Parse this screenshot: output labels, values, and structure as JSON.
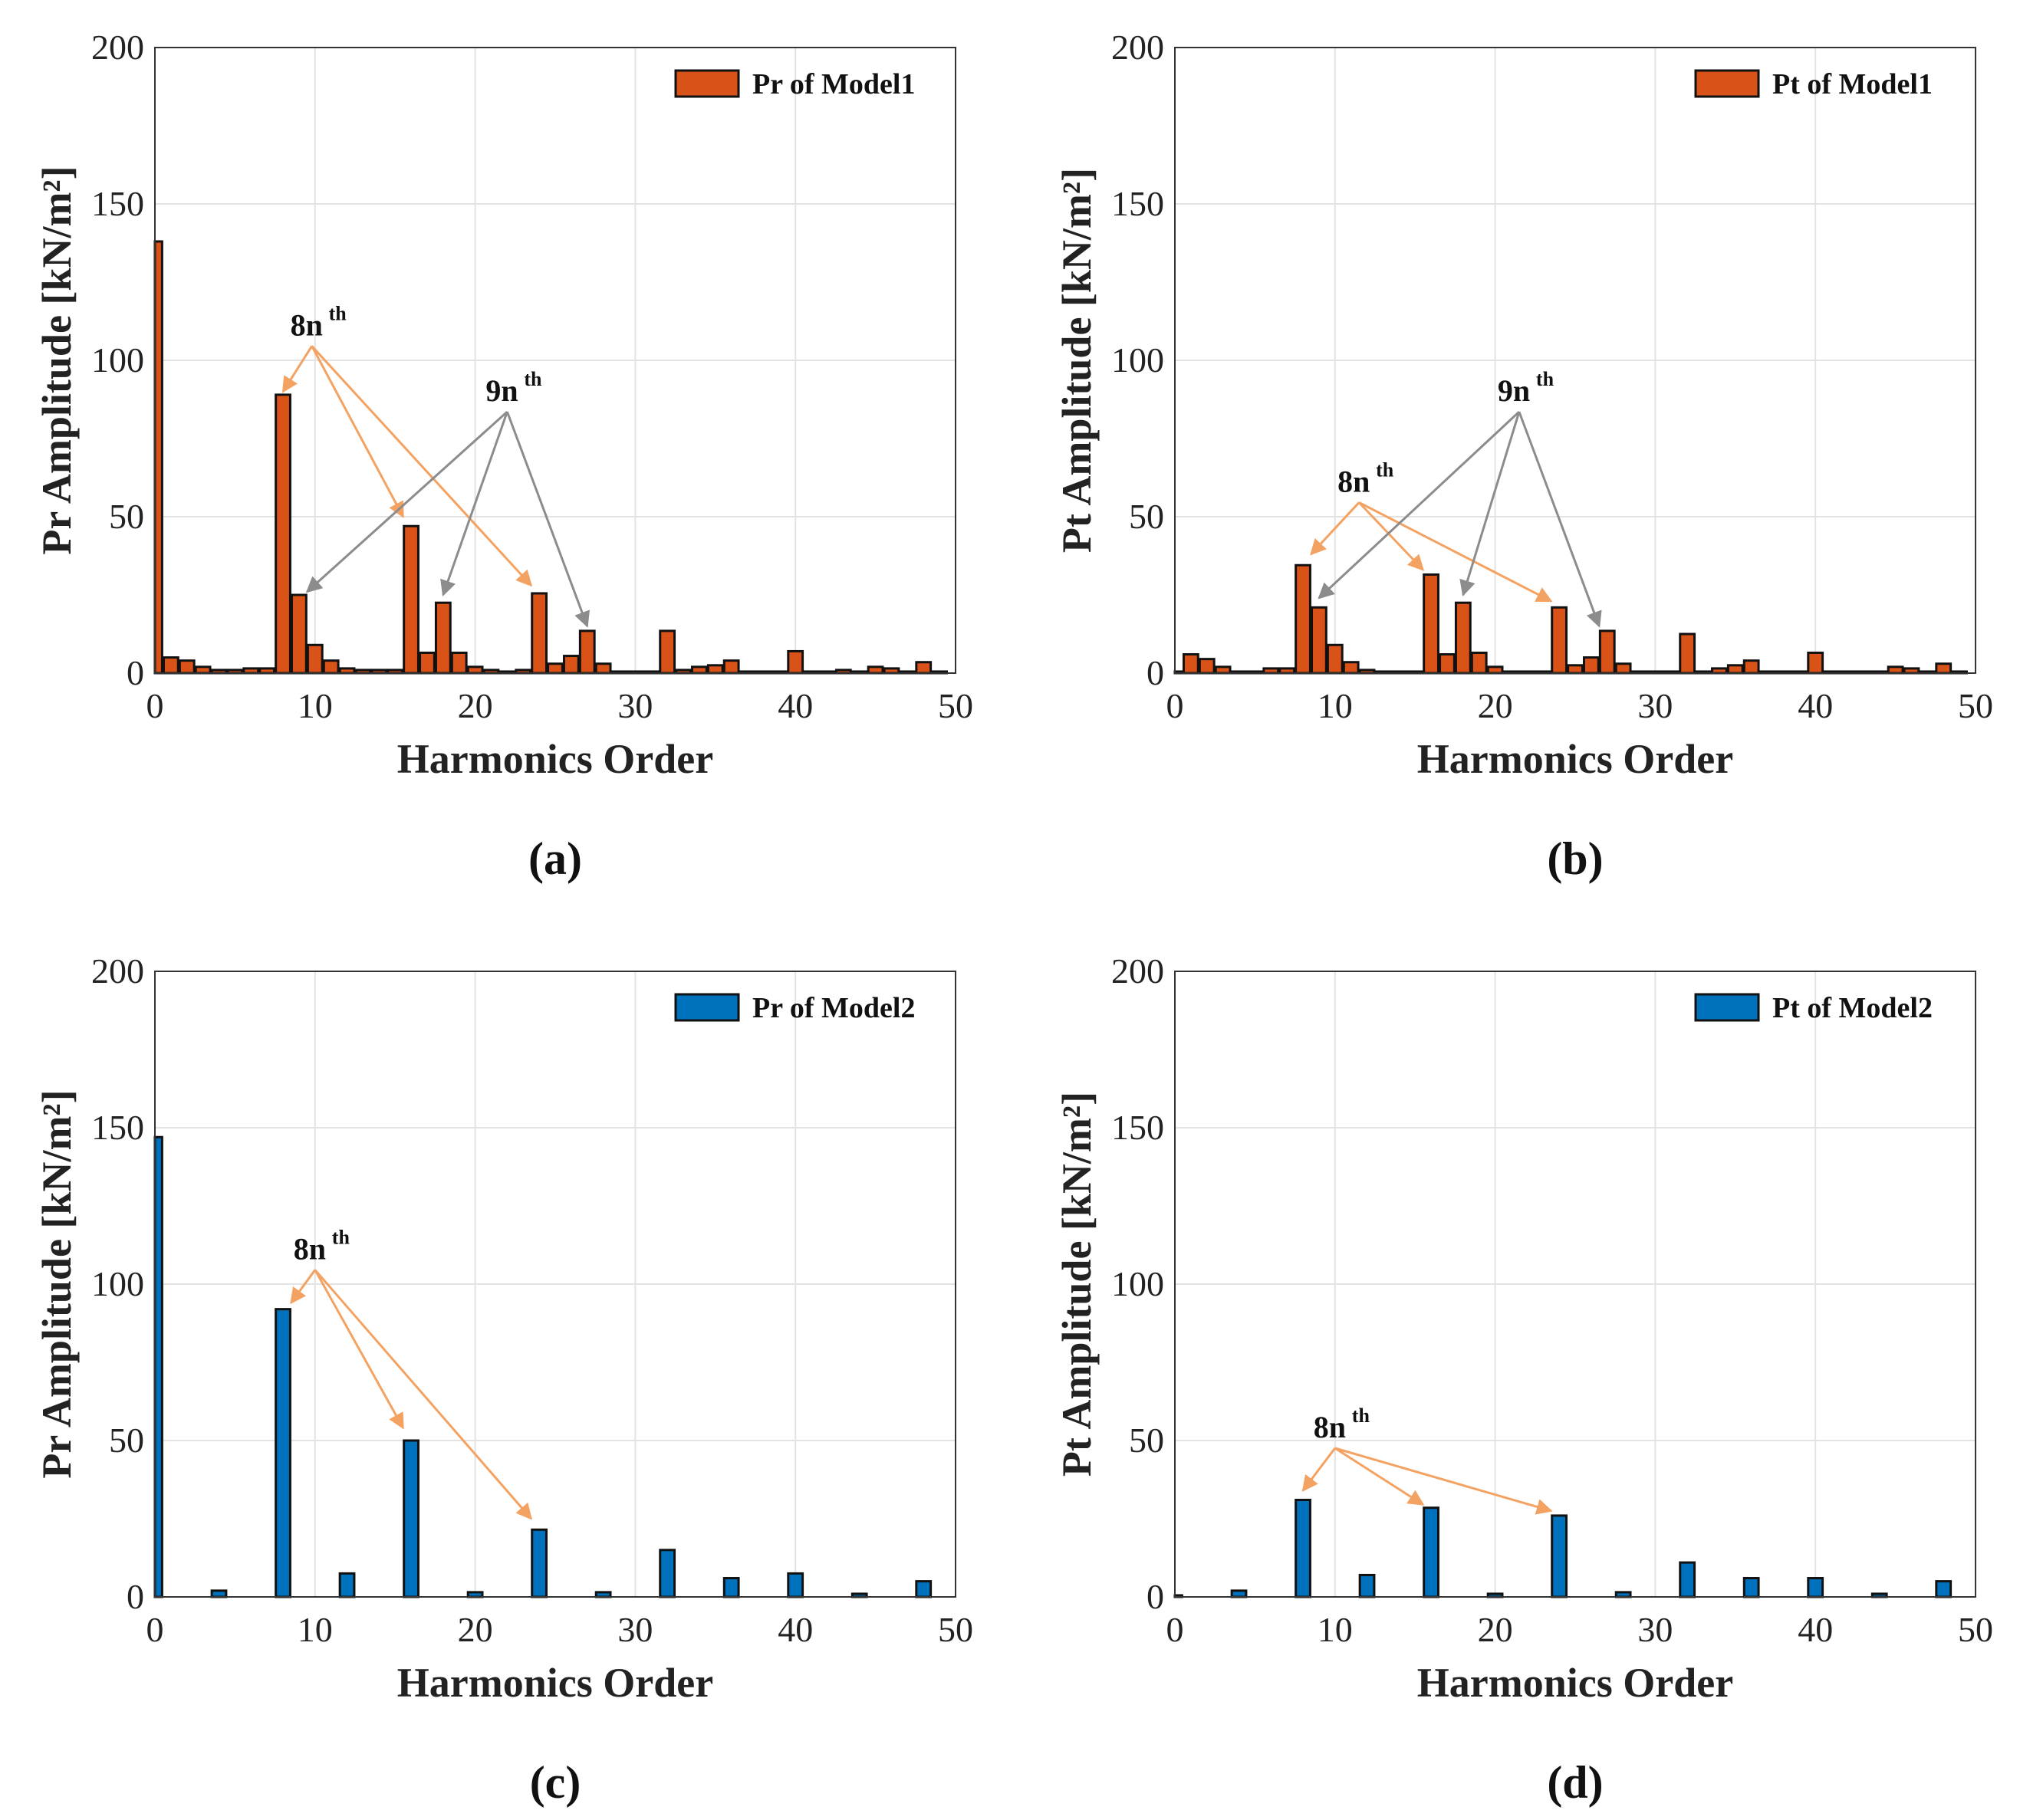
{
  "colors": {
    "model1": "#d95319",
    "model2": "#0072bd",
    "arrow_8n": "#f4a261",
    "arrow_9n": "#8c8c8c"
  },
  "chart_data": [
    {
      "type": "bar",
      "panel": "a",
      "sublabel": "(a)",
      "legend": "Pr of Model1",
      "legend_position": "top-right",
      "color_key": "model1",
      "xlabel": "Harmonics Order",
      "ylabel": "Pr Amplitude [kN/m²]",
      "xlim": [
        0,
        50
      ],
      "ylim": [
        0,
        200
      ],
      "xticks": [
        0,
        10,
        20,
        30,
        40,
        50
      ],
      "yticks": [
        0,
        50,
        100,
        150,
        200
      ],
      "grid": true,
      "x": [
        0,
        1,
        2,
        3,
        4,
        5,
        6,
        7,
        8,
        9,
        10,
        11,
        12,
        13,
        14,
        15,
        16,
        17,
        18,
        19,
        20,
        21,
        22,
        23,
        24,
        25,
        26,
        27,
        28,
        29,
        30,
        31,
        32,
        33,
        34,
        35,
        36,
        37,
        38,
        39,
        40,
        41,
        42,
        43,
        44,
        45,
        46,
        47,
        48,
        49
      ],
      "values": [
        138,
        5,
        4,
        2,
        1,
        1,
        1.5,
        1.5,
        89,
        25,
        9,
        4,
        1.5,
        1,
        1,
        1,
        47,
        6.5,
        22.5,
        6.5,
        2,
        1,
        0.5,
        1,
        25.5,
        3,
        5.5,
        13.5,
        3,
        0.5,
        0.5,
        0.5,
        13.5,
        1,
        2,
        2.5,
        4,
        0.5,
        0.5,
        0.5,
        7,
        0.5,
        0.5,
        1,
        0.5,
        2,
        1.5,
        0.5,
        3.5,
        0.5
      ],
      "annotations": [
        {
          "label": "8n",
          "sup": "th",
          "kind": "arrow_8n",
          "text_at": [
            9.8,
            107
          ],
          "targets": [
            [
              8,
              90
            ],
            [
              15.5,
              50
            ],
            [
              23.5,
              28
            ]
          ]
        },
        {
          "label": "9n",
          "sup": "th",
          "kind": "arrow_9n",
          "text_at": [
            22,
            86
          ],
          "targets": [
            [
              9.5,
              26
            ],
            [
              18,
              25
            ],
            [
              27,
              15
            ]
          ]
        }
      ]
    },
    {
      "type": "bar",
      "panel": "b",
      "sublabel": "(b)",
      "legend": "Pt of Model1",
      "legend_position": "top-right",
      "color_key": "model1",
      "xlabel": "Harmonics Order",
      "ylabel": "Pt Amplitude [kN/m²]",
      "xlim": [
        0,
        50
      ],
      "ylim": [
        0,
        200
      ],
      "xticks": [
        0,
        10,
        20,
        30,
        40,
        50
      ],
      "yticks": [
        0,
        50,
        100,
        150,
        200
      ],
      "grid": true,
      "x": [
        0,
        1,
        2,
        3,
        4,
        5,
        6,
        7,
        8,
        9,
        10,
        11,
        12,
        13,
        14,
        15,
        16,
        17,
        18,
        19,
        20,
        21,
        22,
        23,
        24,
        25,
        26,
        27,
        28,
        29,
        30,
        31,
        32,
        33,
        34,
        35,
        36,
        37,
        38,
        39,
        40,
        41,
        42,
        43,
        44,
        45,
        46,
        47,
        48,
        49
      ],
      "values": [
        0.5,
        6,
        4.5,
        2,
        0.5,
        0.5,
        1.5,
        1.5,
        34.5,
        21,
        9,
        3.5,
        1,
        0.5,
        0.5,
        0.5,
        31.5,
        6,
        22.5,
        6.5,
        2,
        0.5,
        0.5,
        0.5,
        21,
        2.5,
        5,
        13.5,
        3,
        0.5,
        0.5,
        0.5,
        12.5,
        0.5,
        1.5,
        2.5,
        4,
        0.5,
        0.5,
        0.5,
        6.5,
        0.5,
        0.5,
        0.5,
        0.5,
        2,
        1.5,
        0.5,
        3,
        0.5
      ],
      "annotations": [
        {
          "label": "8n",
          "sup": "th",
          "kind": "arrow_8n",
          "text_at": [
            11.5,
            57
          ],
          "targets": [
            [
              8.5,
              38
            ],
            [
              15.5,
              33
            ],
            [
              23.5,
              23
            ]
          ]
        },
        {
          "label": "9n",
          "sup": "th",
          "kind": "arrow_9n",
          "text_at": [
            21.5,
            86
          ],
          "targets": [
            [
              9,
              24
            ],
            [
              18,
              25
            ],
            [
              26.5,
              15
            ]
          ]
        }
      ]
    },
    {
      "type": "bar",
      "panel": "c",
      "sublabel": "(c)",
      "legend": "Pr of Model2",
      "legend_position": "top-right",
      "color_key": "model2",
      "xlabel": "Harmonics Order",
      "ylabel": "Pr Amplitude [kN/m²]",
      "xlim": [
        0,
        50
      ],
      "ylim": [
        0,
        200
      ],
      "xticks": [
        0,
        10,
        20,
        30,
        40,
        50
      ],
      "yticks": [
        0,
        50,
        100,
        150,
        200
      ],
      "grid": true,
      "x": [
        0,
        4,
        8,
        12,
        16,
        20,
        24,
        28,
        32,
        36,
        40,
        44,
        48
      ],
      "values": [
        147,
        2,
        92,
        7.5,
        50,
        1.5,
        21.5,
        1.5,
        15,
        6,
        7.5,
        1,
        5
      ],
      "annotations": [
        {
          "label": "8n",
          "sup": "th",
          "kind": "arrow_8n",
          "text_at": [
            10,
            107
          ],
          "targets": [
            [
              8.5,
              94
            ],
            [
              15.5,
              54
            ],
            [
              23.5,
              25
            ]
          ]
        }
      ]
    },
    {
      "type": "bar",
      "panel": "d",
      "sublabel": "(d)",
      "legend": "Pt of Model2",
      "legend_position": "top-right",
      "color_key": "model2",
      "xlabel": "Harmonics Order",
      "ylabel": "Pt Amplitude [kN/m²]",
      "xlim": [
        0,
        50
      ],
      "ylim": [
        0,
        200
      ],
      "xticks": [
        0,
        10,
        20,
        30,
        40,
        50
      ],
      "yticks": [
        0,
        50,
        100,
        150,
        200
      ],
      "grid": true,
      "x": [
        0,
        4,
        8,
        12,
        16,
        20,
        24,
        28,
        32,
        36,
        40,
        44,
        48
      ],
      "values": [
        0.5,
        2,
        31,
        7,
        28.5,
        1,
        26,
        1.5,
        11,
        6,
        6,
        1,
        5
      ],
      "annotations": [
        {
          "label": "8n",
          "sup": "th",
          "kind": "arrow_8n",
          "text_at": [
            10,
            50
          ],
          "targets": [
            [
              8,
              34
            ],
            [
              15.5,
              29.5
            ],
            [
              23.5,
              27.5
            ]
          ]
        }
      ]
    }
  ]
}
